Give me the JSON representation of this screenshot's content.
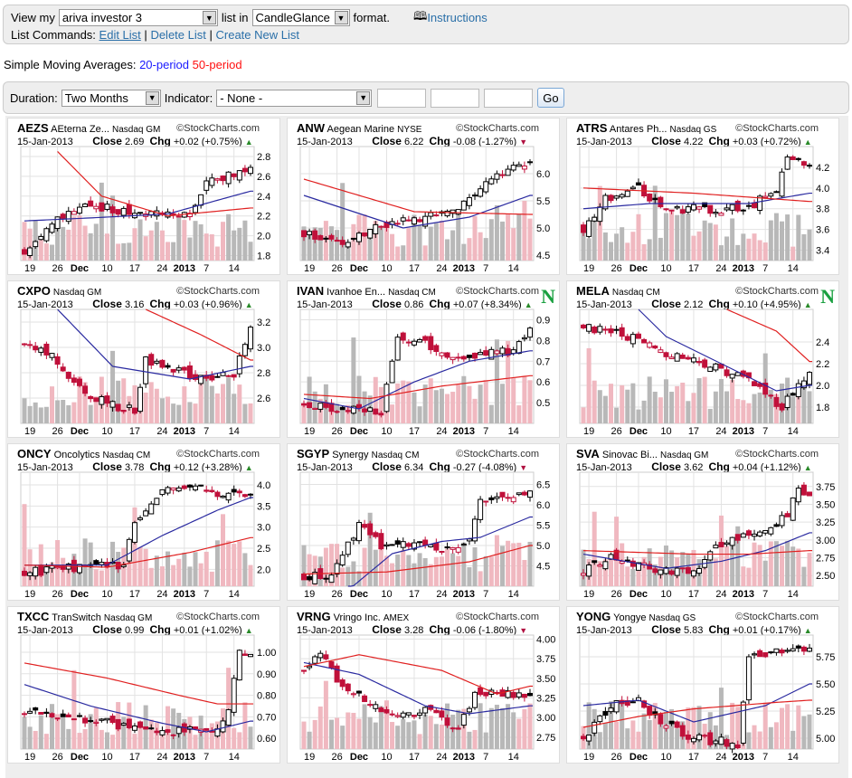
{
  "top": {
    "view_label": "View my",
    "list_value": "ariva investor 3",
    "list_in": "list in",
    "format_value": "CandleGlance",
    "format_label": "format.",
    "instructions": "Instructions",
    "commands_label": "List Commands:",
    "edit": "Edit List",
    "delete": "Delete List",
    "create": "Create New List",
    "sep": "|"
  },
  "sma": {
    "label": "Simple Moving Averages:",
    "p20": "20-period",
    "p50": "50-period"
  },
  "controls": {
    "duration_label": "Duration:",
    "duration_value": "Two Months",
    "indicator_label": "Indicator:",
    "indicator_value": "- None -",
    "go": "Go"
  },
  "colors": {
    "sma20": "#2a2aa0",
    "sma50": "#e02020",
    "up": "#2a8a2a",
    "down": "#b01040"
  },
  "x_labels": [
    "19",
    "26",
    "Dec",
    "10",
    "17",
    "24",
    "2013",
    "7",
    "14"
  ],
  "copyright": "©StockCharts.com",
  "chart_data": [
    {
      "type": "candlestick",
      "symbol": "AEZS",
      "name": "AEterna Ze...",
      "exchange": "Nasdaq GM",
      "date": "15-Jan-2013",
      "close": "2.69",
      "chg": "+0.02 (+0.75%)",
      "dir": "up",
      "new": false,
      "yticks": [
        "1.8",
        "2.0",
        "2.2",
        "2.4",
        "2.6",
        "2.8"
      ],
      "ylim": [
        1.75,
        2.9
      ],
      "price": [
        [
          0,
          1.85
        ],
        [
          5,
          2.15
        ],
        [
          12,
          2.3
        ],
        [
          18,
          2.25
        ],
        [
          26,
          2.2
        ],
        [
          30,
          2.25
        ],
        [
          33,
          2.55
        ],
        [
          38,
          2.62
        ],
        [
          41,
          2.69
        ]
      ],
      "sma20": [
        [
          0,
          2.15
        ],
        [
          12,
          2.18
        ],
        [
          26,
          2.22
        ],
        [
          41,
          2.45
        ]
      ],
      "sma50": [
        [
          6,
          2.85
        ],
        [
          14,
          2.4
        ],
        [
          26,
          2.2
        ],
        [
          41,
          2.28
        ]
      ]
    },
    {
      "type": "candlestick",
      "symbol": "ANW",
      "name": "Aegean Marine",
      "exchange": "NYSE",
      "date": "15-Jan-2013",
      "close": "6.22",
      "chg": "-0.08 (-1.27%)",
      "dir": "down",
      "new": false,
      "yticks": [
        "4.5",
        "5.0",
        "5.5",
        "6.0"
      ],
      "ylim": [
        4.4,
        6.5
      ],
      "price": [
        [
          0,
          4.9
        ],
        [
          8,
          4.7
        ],
        [
          12,
          5.0
        ],
        [
          22,
          5.2
        ],
        [
          28,
          5.3
        ],
        [
          32,
          5.8
        ],
        [
          38,
          6.1
        ],
        [
          41,
          6.22
        ]
      ],
      "sma20": [
        [
          0,
          5.6
        ],
        [
          18,
          5.0
        ],
        [
          30,
          5.2
        ],
        [
          41,
          5.6
        ]
      ],
      "sma50": [
        [
          0,
          5.9
        ],
        [
          20,
          5.3
        ],
        [
          41,
          5.25
        ]
      ]
    },
    {
      "type": "candlestick",
      "symbol": "ATRS",
      "name": "Antares Ph...",
      "exchange": "Nasdaq GS",
      "date": "15-Jan-2013",
      "close": "4.22",
      "chg": "+0.03 (+0.72%)",
      "dir": "up",
      "new": false,
      "yticks": [
        "3.4",
        "3.6",
        "3.8",
        "4.0",
        "4.2"
      ],
      "ylim": [
        3.3,
        4.4
      ],
      "price": [
        [
          0,
          3.6
        ],
        [
          4,
          3.9
        ],
        [
          10,
          4.0
        ],
        [
          14,
          3.8
        ],
        [
          25,
          3.8
        ],
        [
          30,
          3.8
        ],
        [
          35,
          4.0
        ],
        [
          37,
          4.3
        ],
        [
          41,
          4.22
        ]
      ],
      "sma20": [
        [
          0,
          3.8
        ],
        [
          12,
          3.85
        ],
        [
          30,
          3.85
        ],
        [
          41,
          3.95
        ]
      ],
      "sma50": [
        [
          0,
          4.0
        ],
        [
          20,
          3.95
        ],
        [
          41,
          3.87
        ]
      ]
    },
    {
      "type": "candlestick",
      "symbol": "CXPO",
      "name": "",
      "exchange": "Nasdaq GM",
      "date": "15-Jan-2013",
      "close": "3.16",
      "chg": "+0.03 (+0.96%)",
      "dir": "up",
      "new": false,
      "yticks": [
        "2.6",
        "2.8",
        "3.0",
        "3.2"
      ],
      "ylim": [
        2.4,
        3.3
      ],
      "price": [
        [
          0,
          3.05
        ],
        [
          5,
          2.95
        ],
        [
          9,
          2.7
        ],
        [
          15,
          2.55
        ],
        [
          20,
          2.5
        ],
        [
          22,
          2.9
        ],
        [
          26,
          2.85
        ],
        [
          32,
          2.75
        ],
        [
          38,
          2.8
        ],
        [
          41,
          3.16
        ]
      ],
      "sma20": [
        [
          6,
          3.3
        ],
        [
          16,
          2.85
        ],
        [
          30,
          2.75
        ],
        [
          41,
          2.85
        ]
      ],
      "sma50": [
        [
          22,
          3.3
        ],
        [
          32,
          3.1
        ],
        [
          41,
          2.9
        ]
      ]
    },
    {
      "type": "candlestick",
      "symbol": "IVAN",
      "name": "Ivanhoe En...",
      "exchange": "Nasdaq CM",
      "date": "15-Jan-2013",
      "close": "0.86",
      "chg": "+0.07 (+8.34%)",
      "dir": "up",
      "new": true,
      "new_label": "N",
      "yticks": [
        "0.5",
        "0.6",
        "0.7",
        "0.8",
        "0.9"
      ],
      "ylim": [
        0.4,
        0.95
      ],
      "price": [
        [
          0,
          0.5
        ],
        [
          10,
          0.46
        ],
        [
          14,
          0.45
        ],
        [
          17,
          0.82
        ],
        [
          22,
          0.78
        ],
        [
          26,
          0.73
        ],
        [
          30,
          0.72
        ],
        [
          38,
          0.75
        ],
        [
          41,
          0.86
        ]
      ],
      "sma20": [
        [
          0,
          0.52
        ],
        [
          10,
          0.47
        ],
        [
          20,
          0.6
        ],
        [
          30,
          0.7
        ],
        [
          41,
          0.75
        ]
      ],
      "sma50": [
        [
          0,
          0.54
        ],
        [
          12,
          0.52
        ],
        [
          25,
          0.58
        ],
        [
          41,
          0.63
        ]
      ]
    },
    {
      "type": "candlestick",
      "symbol": "MELA",
      "name": "",
      "exchange": "Nasdaq CM",
      "date": "15-Jan-2013",
      "close": "2.12",
      "chg": "+0.10 (+4.95%)",
      "dir": "up",
      "new": true,
      "new_label": "N",
      "yticks": [
        "1.8",
        "2.0",
        "2.2",
        "2.4"
      ],
      "ylim": [
        1.65,
        2.7
      ],
      "price": [
        [
          0,
          2.55
        ],
        [
          8,
          2.45
        ],
        [
          15,
          2.3
        ],
        [
          22,
          2.2
        ],
        [
          30,
          2.05
        ],
        [
          36,
          1.8
        ],
        [
          39,
          2.0
        ],
        [
          41,
          2.12
        ]
      ],
      "sma20": [
        [
          10,
          2.7
        ],
        [
          15,
          2.45
        ],
        [
          25,
          2.2
        ],
        [
          35,
          1.95
        ],
        [
          41,
          2.0
        ]
      ],
      "sma50": [
        [
          26,
          2.7
        ],
        [
          35,
          2.5
        ],
        [
          41,
          2.22
        ]
      ]
    },
    {
      "type": "candlestick",
      "symbol": "ONCY",
      "name": "Oncolytics",
      "exchange": "Nasdaq CM",
      "date": "15-Jan-2013",
      "close": "3.78",
      "chg": "+0.12 (+3.28%)",
      "dir": "up",
      "new": false,
      "yticks": [
        "2.0",
        "2.5",
        "3.0",
        "3.5",
        "4.0"
      ],
      "ylim": [
        1.6,
        4.3
      ],
      "price": [
        [
          0,
          1.9
        ],
        [
          5,
          2.0
        ],
        [
          15,
          2.1
        ],
        [
          18,
          2.1
        ],
        [
          20,
          3.2
        ],
        [
          25,
          3.8
        ],
        [
          30,
          4.05
        ],
        [
          35,
          3.75
        ],
        [
          41,
          3.78
        ]
      ],
      "sma20": [
        [
          0,
          2.1
        ],
        [
          15,
          2.1
        ],
        [
          25,
          2.8
        ],
        [
          35,
          3.4
        ],
        [
          41,
          3.7
        ]
      ],
      "sma50": [
        [
          0,
          2.1
        ],
        [
          15,
          2.05
        ],
        [
          30,
          2.4
        ],
        [
          41,
          2.75
        ]
      ]
    },
    {
      "type": "candlestick",
      "symbol": "SGYP",
      "name": "Synergy",
      "exchange": "Nasdaq CM",
      "date": "15-Jan-2013",
      "close": "6.34",
      "chg": "-0.27 (-4.08%)",
      "dir": "down",
      "new": false,
      "yticks": [
        "4.5",
        "5.0",
        "5.5",
        "6.0",
        "6.5"
      ],
      "ylim": [
        4.0,
        6.8
      ],
      "price": [
        [
          0,
          4.2
        ],
        [
          5,
          4.3
        ],
        [
          10,
          5.5
        ],
        [
          14,
          5.0
        ],
        [
          20,
          5.1
        ],
        [
          28,
          4.85
        ],
        [
          30,
          5.2
        ],
        [
          32,
          6.1
        ],
        [
          38,
          6.2
        ],
        [
          41,
          6.34
        ]
      ],
      "sma20": [
        [
          8,
          3.9
        ],
        [
          16,
          4.8
        ],
        [
          25,
          5.1
        ],
        [
          32,
          5.2
        ],
        [
          41,
          5.7
        ]
      ],
      "sma50": [
        [
          0,
          4.3
        ],
        [
          15,
          4.35
        ],
        [
          30,
          4.6
        ],
        [
          41,
          5.0
        ]
      ]
    },
    {
      "type": "candlestick",
      "symbol": "SVA",
      "name": "Sinovac Bi...",
      "exchange": "Nasdaq GM",
      "date": "15-Jan-2013",
      "close": "3.62",
      "chg": "+0.04 (+1.12%)",
      "dir": "up",
      "new": false,
      "yticks": [
        "2.50",
        "2.75",
        "3.00",
        "3.25",
        "3.50",
        "3.75"
      ],
      "ylim": [
        2.35,
        3.95
      ],
      "price": [
        [
          0,
          2.55
        ],
        [
          5,
          2.75
        ],
        [
          12,
          2.6
        ],
        [
          20,
          2.55
        ],
        [
          24,
          2.9
        ],
        [
          28,
          3.0
        ],
        [
          32,
          3.1
        ],
        [
          37,
          3.35
        ],
        [
          39,
          3.7
        ],
        [
          41,
          3.62
        ]
      ],
      "sma20": [
        [
          0,
          2.8
        ],
        [
          15,
          2.6
        ],
        [
          25,
          2.7
        ],
        [
          33,
          2.85
        ],
        [
          41,
          3.1
        ]
      ],
      "sma50": [
        [
          0,
          2.85
        ],
        [
          20,
          2.8
        ],
        [
          30,
          2.8
        ],
        [
          41,
          2.85
        ]
      ]
    },
    {
      "type": "candlestick",
      "symbol": "TXCC",
      "name": "TranSwitch",
      "exchange": "Nasdaq GM",
      "date": "15-Jan-2013",
      "close": "0.99",
      "chg": "+0.01 (+1.02%)",
      "dir": "up",
      "new": false,
      "yticks": [
        "0.60",
        "0.70",
        "0.80",
        "0.90",
        "1.00"
      ],
      "ylim": [
        0.55,
        1.08
      ],
      "price": [
        [
          0,
          0.72
        ],
        [
          8,
          0.7
        ],
        [
          14,
          0.68
        ],
        [
          20,
          0.64
        ],
        [
          28,
          0.63
        ],
        [
          35,
          0.65
        ],
        [
          37,
          0.75
        ],
        [
          39,
          1.0
        ],
        [
          41,
          0.99
        ]
      ],
      "sma20": [
        [
          0,
          0.85
        ],
        [
          12,
          0.75
        ],
        [
          25,
          0.67
        ],
        [
          33,
          0.63
        ],
        [
          41,
          0.68
        ]
      ],
      "sma50": [
        [
          0,
          0.95
        ],
        [
          15,
          0.88
        ],
        [
          28,
          0.8
        ],
        [
          35,
          0.76
        ],
        [
          41,
          0.76
        ]
      ]
    },
    {
      "type": "candlestick",
      "symbol": "VRNG",
      "name": "Vringo Inc.",
      "exchange": "AMEX",
      "date": "15-Jan-2013",
      "close": "3.28",
      "chg": "-0.06 (-1.80%)",
      "dir": "down",
      "new": false,
      "yticks": [
        "2.75",
        "3.00",
        "3.25",
        "3.50",
        "3.75",
        "4.00"
      ],
      "ylim": [
        2.6,
        4.05
      ],
      "price": [
        [
          0,
          3.6
        ],
        [
          3,
          3.8
        ],
        [
          7,
          3.4
        ],
        [
          12,
          3.2
        ],
        [
          18,
          3.0
        ],
        [
          22,
          3.1
        ],
        [
          28,
          2.85
        ],
        [
          31,
          3.3
        ],
        [
          36,
          3.3
        ],
        [
          41,
          3.28
        ]
      ],
      "sma20": [
        [
          0,
          3.7
        ],
        [
          10,
          3.55
        ],
        [
          22,
          3.15
        ],
        [
          30,
          3.05
        ],
        [
          41,
          3.15
        ]
      ],
      "sma50": [
        [
          0,
          3.65
        ],
        [
          10,
          3.8
        ],
        [
          25,
          3.6
        ],
        [
          35,
          3.3
        ],
        [
          41,
          3.4
        ]
      ]
    },
    {
      "type": "candlestick",
      "symbol": "YONG",
      "name": "Yongye",
      "exchange": "Nasdaq GS",
      "date": "15-Jan-2013",
      "close": "5.83",
      "chg": "+0.01 (+0.17%)",
      "dir": "up",
      "new": false,
      "yticks": [
        "5.00",
        "5.25",
        "5.50",
        "5.75"
      ],
      "ylim": [
        4.9,
        5.95
      ],
      "price": [
        [
          0,
          5.0
        ],
        [
          5,
          5.3
        ],
        [
          10,
          5.35
        ],
        [
          14,
          5.15
        ],
        [
          20,
          5.0
        ],
        [
          28,
          4.95
        ],
        [
          30,
          5.75
        ],
        [
          38,
          5.8
        ],
        [
          41,
          5.83
        ]
      ],
      "sma20": [
        [
          0,
          5.3
        ],
        [
          10,
          5.35
        ],
        [
          20,
          5.15
        ],
        [
          33,
          5.3
        ],
        [
          41,
          5.5
        ]
      ],
      "sma50": [
        [
          0,
          5.1
        ],
        [
          10,
          5.2
        ],
        [
          20,
          5.27
        ],
        [
          35,
          5.33
        ],
        [
          41,
          5.35
        ]
      ]
    }
  ]
}
